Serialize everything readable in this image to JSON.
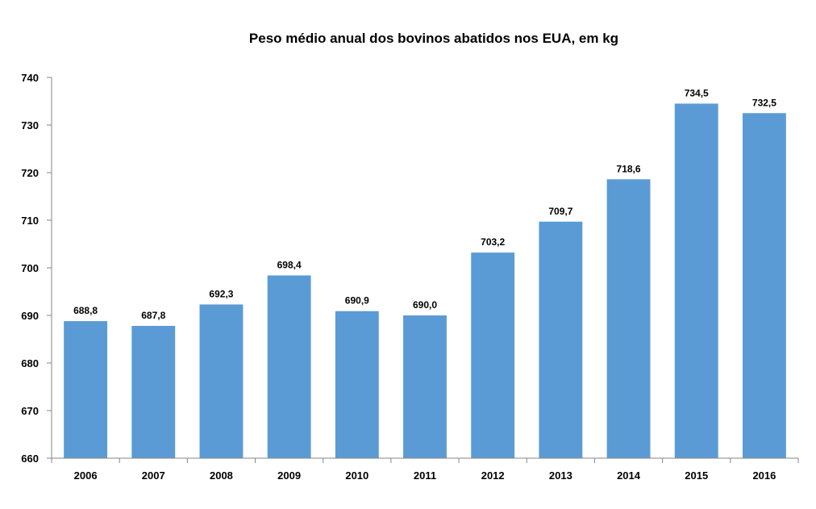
{
  "chart_data": {
    "type": "bar",
    "title": "Peso médio anual dos bovinos abatidos nos EUA, em kg",
    "xlabel": "",
    "ylabel": "",
    "categories": [
      "2006",
      "2007",
      "2008",
      "2009",
      "2010",
      "2011",
      "2012",
      "2013",
      "2014",
      "2015",
      "2016"
    ],
    "values": [
      688.8,
      687.8,
      692.3,
      698.4,
      690.9,
      690.0,
      703.2,
      709.7,
      718.6,
      734.5,
      732.5
    ],
    "value_labels": [
      "688,8",
      "687,8",
      "692,3",
      "698,4",
      "690,9",
      "690,0",
      "703,2",
      "709,7",
      "718,6",
      "734,5",
      "732,5"
    ],
    "ylim": [
      660,
      740
    ],
    "yticks": [
      660,
      670,
      680,
      690,
      700,
      710,
      720,
      730,
      740
    ],
    "grid": false,
    "legend": "none",
    "colors": {
      "bar": "#5B9BD5",
      "axis": "#868686"
    }
  }
}
